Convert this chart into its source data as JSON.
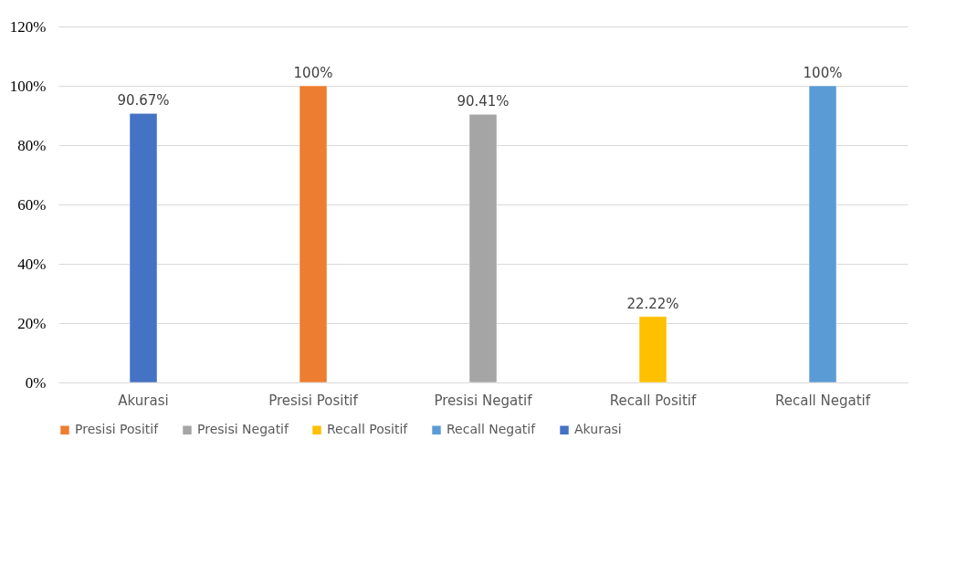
{
  "chart_data": {
    "type": "bar",
    "categories": [
      "Akurasi",
      "Presisi Positif",
      "Presisi Negatif",
      "Recall Positif",
      "Recall Negatif"
    ],
    "series": [
      {
        "name": "Presisi Positif",
        "color": "#ed7d31",
        "values": [
          null,
          100,
          null,
          null,
          null
        ],
        "value_labels": [
          null,
          "100%",
          null,
          null,
          null
        ]
      },
      {
        "name": "Presisi Negatif",
        "color": "#a5a5a5",
        "values": [
          null,
          null,
          90.41,
          null,
          null
        ],
        "value_labels": [
          null,
          null,
          "90.41%",
          null,
          null
        ]
      },
      {
        "name": "Recall Positif",
        "color": "#ffc000",
        "values": [
          null,
          null,
          null,
          22.22,
          null
        ],
        "value_labels": [
          null,
          null,
          null,
          "22.22%",
          null
        ]
      },
      {
        "name": "Recall Negatif",
        "color": "#5b9bd5",
        "values": [
          null,
          null,
          null,
          null,
          100
        ],
        "value_labels": [
          null,
          null,
          null,
          null,
          "100%"
        ]
      },
      {
        "name": "Akurasi",
        "color": "#4472c4",
        "values": [
          90.67,
          null,
          null,
          null,
          null
        ],
        "value_labels": [
          "90.67%",
          null,
          null,
          null,
          null
        ]
      }
    ],
    "ylim": [
      0,
      120
    ],
    "yticks": [
      {
        "value": 0,
        "label": "0%"
      },
      {
        "value": 20,
        "label": "20%"
      },
      {
        "value": 40,
        "label": "40%"
      },
      {
        "value": 60,
        "label": "60%"
      },
      {
        "value": 80,
        "label": "80%"
      },
      {
        "value": 100,
        "label": "100%"
      },
      {
        "value": 120,
        "label": "120%"
      }
    ],
    "grid": "y",
    "legend": "bottom"
  }
}
